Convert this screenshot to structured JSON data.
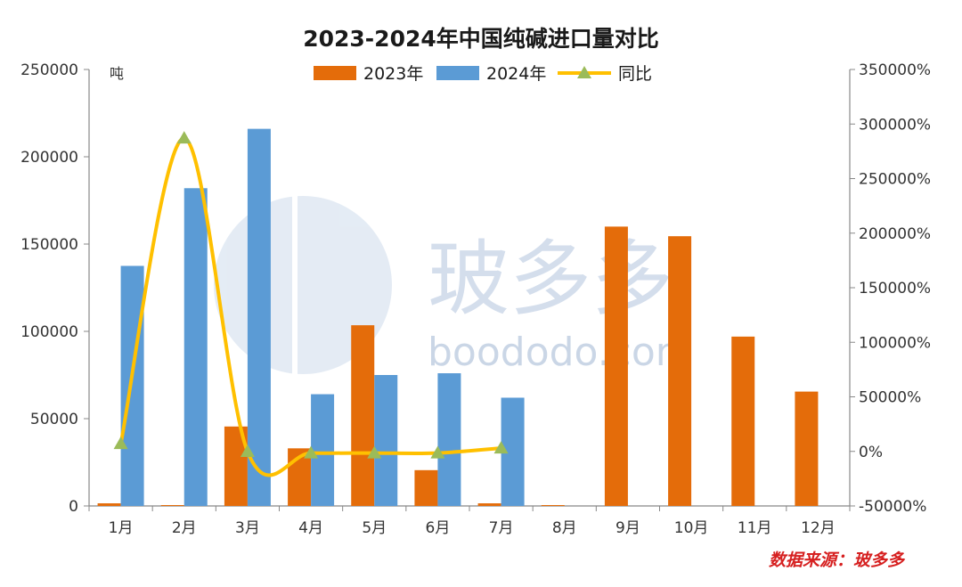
{
  "chart_data": {
    "type": "bar",
    "title": "2023-2024年中国纯碱进口量对比",
    "y_unit": "吨",
    "categories": [
      "1月",
      "2月",
      "3月",
      "4月",
      "5月",
      "6月",
      "7月",
      "8月",
      "9月",
      "10月",
      "11月",
      "12月"
    ],
    "series": [
      {
        "name": "2023年",
        "type": "bar",
        "axis": "left",
        "color": "#E46C0A",
        "values": [
          1500,
          500,
          45500,
          33000,
          103500,
          20500,
          1500,
          500,
          160000,
          154500,
          97000,
          65500
        ]
      },
      {
        "name": "2024年",
        "type": "bar",
        "axis": "left",
        "color": "#5B9BD5",
        "values": [
          137500,
          182000,
          216000,
          64000,
          75000,
          76000,
          62000,
          null,
          null,
          null,
          null,
          null
        ]
      },
      {
        "name": "同比",
        "type": "line",
        "axis": "right",
        "color": "#FFC000",
        "marker_color": "#9BBB59",
        "values": [
          7000,
          287000,
          -200,
          -1500,
          -1500,
          -1500,
          3000,
          null,
          null,
          null,
          null,
          null
        ]
      }
    ],
    "y_left": {
      "min": 0,
      "max": 250000,
      "ticks": [
        "0",
        "50000",
        "100000",
        "150000",
        "200000",
        "250000"
      ]
    },
    "y_right": {
      "min": -50000,
      "max": 350000,
      "ticks": [
        "-50000%",
        "0%",
        "50000%",
        "100000%",
        "150000%",
        "200000%",
        "250000%",
        "300000%",
        "350000%"
      ]
    },
    "legend_position": "top-center",
    "grid": false,
    "source_note": "数据来源：玻多多"
  },
  "watermark": {
    "text_cn": "玻多多",
    "text_en": "boododo.com"
  }
}
